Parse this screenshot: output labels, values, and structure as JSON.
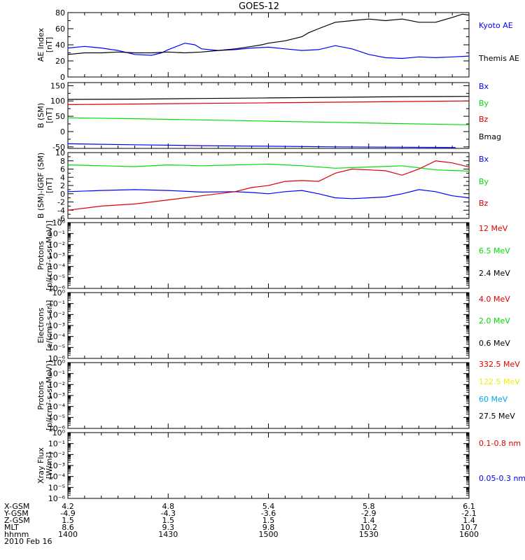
{
  "title": "GOES-12",
  "colors": {
    "black": "#000000",
    "blue": "#0000ff",
    "green": "#00dd00",
    "red": "#dd0000",
    "yellow": "#eeee00",
    "cyan": "#00aaee"
  },
  "chart_data": [
    {
      "type": "line",
      "panel": "ae",
      "ylabel": [
        "AE Index",
        "[nT]"
      ],
      "ylim": [
        0,
        80
      ],
      "yticks": [
        0,
        20,
        40,
        60,
        80
      ],
      "ytick_labels": [
        "0",
        "20",
        "40",
        "60",
        "80"
      ],
      "log": false,
      "series": [
        {
          "name": "Kyoto AE",
          "color": "#0000ff",
          "x": [
            0,
            5,
            10,
            15,
            18,
            20,
            25,
            28,
            30,
            35,
            38,
            40,
            45,
            50,
            55,
            60,
            65,
            70,
            75,
            80,
            85,
            90,
            95,
            100,
            105,
            110,
            115,
            120
          ],
          "y": [
            36,
            38,
            36,
            33,
            30,
            28,
            27,
            30,
            34,
            42,
            40,
            35,
            33,
            34,
            36,
            37,
            35,
            33,
            34,
            39,
            35,
            28,
            24,
            23,
            25,
            24,
            25,
            26
          ]
        },
        {
          "name": "Themis AE",
          "color": "#000000",
          "x": [
            0,
            5,
            10,
            15,
            20,
            25,
            30,
            35,
            40,
            45,
            50,
            55,
            58,
            60,
            65,
            70,
            72,
            75,
            80,
            85,
            90,
            95,
            100,
            105,
            110,
            115,
            118,
            120
          ],
          "y": [
            28,
            30,
            30,
            31,
            30,
            30,
            31,
            30,
            31,
            33,
            35,
            38,
            40,
            42,
            45,
            50,
            55,
            60,
            68,
            70,
            72,
            70,
            72,
            68,
            68,
            74,
            78,
            77
          ]
        }
      ]
    },
    {
      "type": "line",
      "panel": "b_sm",
      "ylabel": [
        "B (SM)",
        "[nT]"
      ],
      "ylim": [
        -55,
        160
      ],
      "yticks": [
        -50,
        0,
        50,
        100,
        150
      ],
      "ytick_labels": [
        "-50",
        "0",
        "50",
        "100",
        "150"
      ],
      "log": false,
      "series": [
        {
          "name": "Bx",
          "color": "#0000ff",
          "x": [
            0,
            20,
            40,
            60,
            80,
            100,
            116
          ],
          "y": [
            -40,
            -43,
            -46,
            -48,
            -50,
            -51,
            -52
          ]
        },
        {
          "name": "By",
          "color": "#00dd00",
          "x": [
            0,
            20,
            40,
            60,
            80,
            100,
            120
          ],
          "y": [
            45,
            42,
            38,
            34,
            30,
            26,
            22
          ]
        },
        {
          "name": "Bz",
          "color": "#dd0000",
          "x": [
            0,
            20,
            40,
            60,
            80,
            100,
            120
          ],
          "y": [
            88,
            90,
            92,
            94,
            96,
            98,
            100
          ]
        },
        {
          "name": "Bmag",
          "color": "#000000",
          "x": [
            0,
            20,
            40,
            60,
            80,
            100,
            120
          ],
          "y": [
            105,
            106,
            108,
            110,
            112,
            114,
            115
          ]
        }
      ]
    },
    {
      "type": "line",
      "panel": "b_igrf",
      "ylabel": [
        "B (SM)-IGRF (SM)",
        "[nT]"
      ],
      "ylim": [
        -6,
        10
      ],
      "yticks": [
        -6,
        -4,
        -2,
        0,
        2,
        4,
        6,
        8,
        10
      ],
      "ytick_labels": [
        "-6",
        "-4",
        "-2",
        "0",
        "2",
        "4",
        "6",
        "8",
        "10"
      ],
      "log": false,
      "series": [
        {
          "name": "Bx",
          "color": "#0000ff",
          "x": [
            0,
            10,
            20,
            30,
            40,
            50,
            55,
            60,
            65,
            70,
            75,
            80,
            85,
            90,
            95,
            100,
            105,
            110,
            115,
            120
          ],
          "y": [
            0.5,
            0.8,
            1.0,
            0.8,
            0.4,
            0.5,
            0.3,
            0.0,
            0.5,
            0.8,
            0.0,
            -1.0,
            -1.2,
            -1.0,
            -0.8,
            0.0,
            1.0,
            0.5,
            -0.5,
            -1.0
          ]
        },
        {
          "name": "By",
          "color": "#00dd00",
          "x": [
            0,
            10,
            20,
            30,
            40,
            50,
            60,
            70,
            80,
            90,
            100,
            110,
            120
          ],
          "y": [
            7.0,
            6.8,
            6.6,
            7.0,
            6.8,
            7.0,
            7.2,
            6.8,
            6.2,
            6.5,
            6.8,
            5.8,
            5.5
          ]
        },
        {
          "name": "Bz",
          "color": "#dd0000",
          "x": [
            0,
            10,
            20,
            30,
            40,
            50,
            55,
            60,
            65,
            70,
            75,
            80,
            85,
            90,
            95,
            100,
            105,
            110,
            115,
            120
          ],
          "y": [
            -4.0,
            -3.0,
            -2.5,
            -1.5,
            -0.5,
            0.5,
            1.5,
            2.0,
            3.0,
            3.2,
            3.0,
            5.0,
            6.0,
            5.8,
            5.6,
            4.5,
            6.0,
            8.0,
            7.5,
            6.5
          ]
        }
      ]
    },
    {
      "type": "line",
      "panel": "protons_low",
      "ylabel": [
        "Protons",
        "[p/(cm²-s-sr-MeV)]"
      ],
      "ylim": [
        -6,
        0
      ],
      "yticks": [
        -6,
        -5,
        -4,
        -3,
        -2,
        -1,
        0
      ],
      "ytick_labels": [
        "10⁻⁶",
        "10⁻⁵",
        "10⁻⁴",
        "10⁻³",
        "10⁻²",
        "10⁻¹",
        "10⁰"
      ],
      "log": true,
      "series": [
        {
          "name": "12 MeV",
          "color": "#dd0000",
          "x": [],
          "y": []
        },
        {
          "name": "6.5 MeV",
          "color": "#00dd00",
          "x": [],
          "y": []
        },
        {
          "name": "2.4 MeV",
          "color": "#000000",
          "x": [],
          "y": []
        }
      ]
    },
    {
      "type": "line",
      "panel": "electrons",
      "ylabel": [
        "Electrons",
        "[e/(cm²-s-sr)]"
      ],
      "ylim": [
        -6,
        0
      ],
      "yticks": [
        -6,
        -5,
        -4,
        -3,
        -2,
        -1,
        0
      ],
      "ytick_labels": [
        "10⁻⁶",
        "10⁻⁵",
        "10⁻⁴",
        "10⁻³",
        "10⁻²",
        "10⁻¹",
        "10⁰"
      ],
      "log": true,
      "series": [
        {
          "name": "4.0 MeV",
          "color": "#dd0000",
          "x": [],
          "y": []
        },
        {
          "name": "2.0 MeV",
          "color": "#00dd00",
          "x": [],
          "y": []
        },
        {
          "name": "0.6 MeV",
          "color": "#000000",
          "x": [],
          "y": []
        }
      ]
    },
    {
      "type": "line",
      "panel": "protons_high",
      "ylabel": [
        "Protons",
        "[p/(cm²-s-sr-MeV)]"
      ],
      "ylim": [
        -6,
        0
      ],
      "yticks": [
        -6,
        -5,
        -4,
        -3,
        -2,
        -1,
        0
      ],
      "ytick_labels": [
        "10⁻⁶",
        "10⁻⁵",
        "10⁻⁴",
        "10⁻³",
        "10⁻²",
        "10⁻¹",
        "10⁰"
      ],
      "log": true,
      "series": [
        {
          "name": "332.5 MeV",
          "color": "#dd0000",
          "x": [],
          "y": []
        },
        {
          "name": "122.5 MeV",
          "color": "#eeee00",
          "x": [],
          "y": []
        },
        {
          "name": "60 MeV",
          "color": "#00aaee",
          "x": [],
          "y": []
        },
        {
          "name": "27.5 MeV",
          "color": "#000000",
          "x": [],
          "y": []
        }
      ]
    },
    {
      "type": "line",
      "panel": "xray",
      "ylabel": [
        "Xray Flux",
        "[W/m²]"
      ],
      "ylim": [
        -6,
        0
      ],
      "yticks": [
        -6,
        -5,
        -4,
        -3,
        -2,
        -1,
        0
      ],
      "ytick_labels": [
        "10⁻⁶",
        "10⁻⁵",
        "10⁻⁴",
        "10⁻³",
        "10⁻²",
        "10⁻¹",
        "10⁰"
      ],
      "log": true,
      "series": [
        {
          "name": "0.1-0.8 nm",
          "color": "#dd0000",
          "x": [],
          "y": []
        },
        {
          "name": "0.05-0.3 nm",
          "color": "#0000ff",
          "x": [],
          "y": []
        }
      ]
    }
  ],
  "x_axis": {
    "xlim": [
      0,
      120
    ],
    "major_ticks": [
      0,
      30,
      60,
      90,
      120
    ],
    "rows": [
      {
        "label": "X-GSM",
        "values": [
          "4.2",
          "4.8",
          "5.4",
          "5.8",
          "6.1"
        ]
      },
      {
        "label": "Y-GSM",
        "values": [
          "-4.9",
          "-4.3",
          "-3.6",
          "-2.9",
          "-2.1"
        ]
      },
      {
        "label": "Z-GSM",
        "values": [
          "1.5",
          "1.5",
          "1.5",
          "1.4",
          "1.4"
        ]
      },
      {
        "label": "MLT",
        "values": [
          "8.6",
          "9.3",
          "9.8",
          "10.2",
          "10.7"
        ]
      },
      {
        "label": "hhmm",
        "values": [
          "1400",
          "1430",
          "1500",
          "1530",
          "1600"
        ]
      }
    ],
    "date": "2010 Feb 16"
  }
}
